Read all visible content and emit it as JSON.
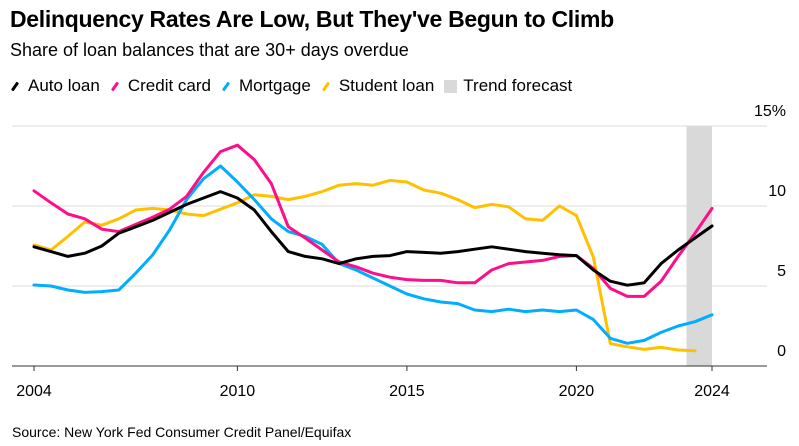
{
  "chart_data": {
    "type": "line",
    "title": "Delinquency Rates Are Low, But They've Begun to Climb",
    "subtitle": "Share of loan balances that are 30+ days overdue",
    "source": "Source: New York Fed Consumer Credit Panel/Equifax",
    "xlim": [
      2004,
      2024
    ],
    "ylim": [
      0,
      15
    ],
    "x_ticks": [
      "2004",
      "2010",
      "2015",
      "2020",
      "2024"
    ],
    "x_tick_values": [
      2004,
      2010,
      2015,
      2020,
      2024
    ],
    "y_ticks": [
      "0",
      "5",
      "10",
      "15%"
    ],
    "y_tick_values": [
      0,
      5,
      10,
      15
    ],
    "grid": true,
    "legend_placement": "top-left",
    "forecast": {
      "name": "Trend forecast",
      "range": [
        2023.25,
        2024
      ],
      "color": "#d9d9d9"
    },
    "x": [
      2004,
      2004.5,
      2005,
      2005.5,
      2006,
      2006.5,
      2007,
      2007.5,
      2008,
      2008.5,
      2009,
      2009.5,
      2010,
      2010.5,
      2011,
      2011.5,
      2012,
      2012.5,
      2013,
      2013.5,
      2014,
      2014.5,
      2015,
      2015.5,
      2016,
      2016.5,
      2017,
      2017.5,
      2018,
      2018.5,
      2019,
      2019.5,
      2020,
      2020.5,
      2021,
      2021.5,
      2022,
      2022.5,
      2023,
      2023.5,
      2024
    ],
    "series": [
      {
        "name": "Auto loan",
        "color": "#000000",
        "values": [
          7.45,
          7.15,
          6.85,
          7.05,
          7.5,
          8.3,
          8.7,
          9.1,
          9.6,
          10.1,
          10.5,
          10.9,
          10.5,
          9.75,
          8.4,
          7.15,
          6.85,
          6.7,
          6.4,
          6.7,
          6.85,
          6.9,
          7.15,
          7.1,
          7.05,
          7.15,
          7.3,
          7.45,
          7.3,
          7.15,
          7.05,
          6.95,
          6.9,
          6.0,
          5.3,
          5.05,
          5.2,
          6.4,
          7.25,
          8.0,
          8.75
        ]
      },
      {
        "name": "Credit card",
        "color": "#ff0d8a",
        "values": [
          10.95,
          10.2,
          9.5,
          9.2,
          8.55,
          8.4,
          8.85,
          9.3,
          9.8,
          10.6,
          12.1,
          13.4,
          13.8,
          12.9,
          11.4,
          8.7,
          8.0,
          7.25,
          6.5,
          6.2,
          5.8,
          5.55,
          5.4,
          5.35,
          5.35,
          5.2,
          5.2,
          6.0,
          6.4,
          6.5,
          6.6,
          6.85,
          6.9,
          6.1,
          4.85,
          4.35,
          4.35,
          5.3,
          6.85,
          8.3,
          9.85
        ]
      },
      {
        "name": "Mortgage",
        "color": "#00aeff",
        "values": [
          5.06,
          5.0,
          4.75,
          4.6,
          4.65,
          4.75,
          5.8,
          6.94,
          8.5,
          10.4,
          11.7,
          12.5,
          11.5,
          10.4,
          9.2,
          8.4,
          8.1,
          7.6,
          6.4,
          6.0,
          5.5,
          5.0,
          4.5,
          4.2,
          4.0,
          3.9,
          3.5,
          3.4,
          3.55,
          3.4,
          3.5,
          3.4,
          3.5,
          2.9,
          1.73,
          1.42,
          1.6,
          2.1,
          2.5,
          2.77,
          3.2
        ]
      },
      {
        "name": "Student loan",
        "color": "#ffc000",
        "values": [
          7.56,
          7.25,
          8.1,
          9.0,
          8.8,
          9.2,
          9.75,
          9.85,
          9.75,
          9.5,
          9.4,
          9.8,
          10.2,
          10.7,
          10.6,
          10.4,
          10.6,
          10.9,
          11.3,
          11.4,
          11.3,
          11.6,
          11.5,
          11.0,
          10.8,
          10.4,
          9.9,
          10.1,
          9.95,
          9.2,
          9.1,
          10.0,
          9.4,
          6.8,
          1.4,
          1.2,
          1.04,
          1.17,
          1.0,
          0.95,
          null
        ]
      }
    ]
  }
}
